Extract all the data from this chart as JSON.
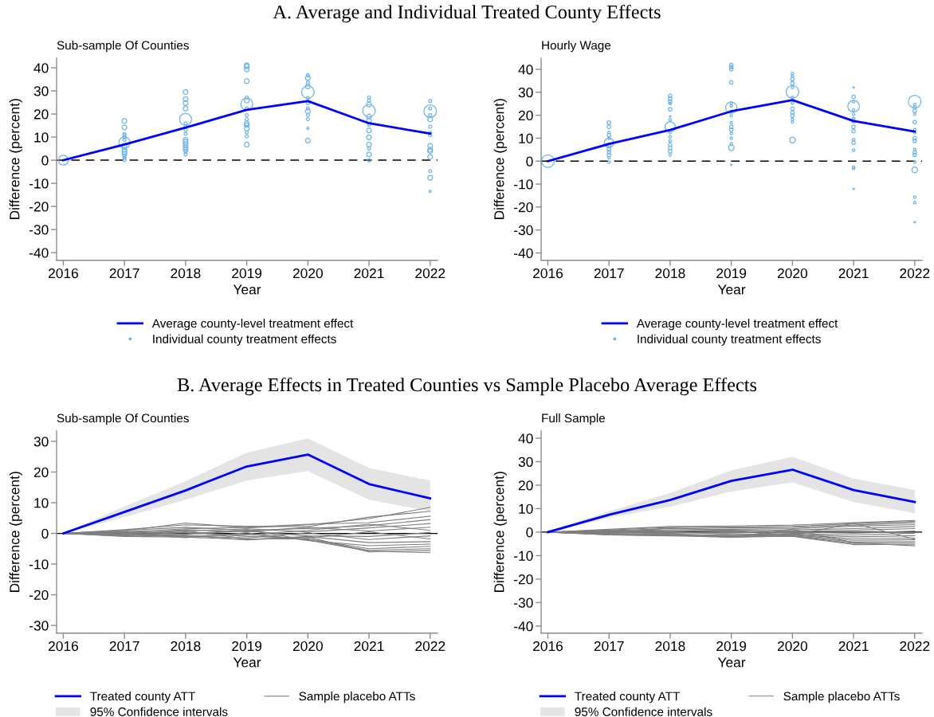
{
  "chart_data": [
    {
      "type": "line",
      "title": "A. Average and Individual Treated County Effects",
      "subtitle": "Sub-sample Of Counties",
      "xlabel": "Year",
      "ylabel": "Difference (percent)",
      "x": [
        2016,
        2017,
        2018,
        2019,
        2020,
        2021,
        2022
      ],
      "xlim": [
        2015.89,
        2022.12
      ],
      "xticks": [
        2016,
        2017,
        2018,
        2019,
        2020,
        2021,
        2022
      ],
      "ylim": [
        -43.3,
        44.2
      ],
      "yticks": [
        -40,
        -30,
        -20,
        -10,
        0,
        10,
        20,
        30,
        40
      ],
      "ref_lines": [
        {
          "axis": "y",
          "value": 0,
          "color": "#000000",
          "line_style": "dashed"
        }
      ],
      "grid": false,
      "legend": "bottom",
      "series": [
        {
          "name": "Average county-level treatment effect",
          "color": "#0000ff",
          "values": [
            0,
            6.8,
            14.1,
            21.8,
            25.6,
            16.0,
            11.5
          ]
        },
        {
          "type": "bubble",
          "name": "Individual county treatment effects",
          "color": "#6cb4ea",
          "marker": "circle",
          "x": [
            2016,
            2017,
            2017,
            2017,
            2017,
            2017,
            2017,
            2017,
            2017,
            2017,
            2017,
            2017,
            2017,
            2017,
            2017,
            2018,
            2018,
            2018,
            2018,
            2018,
            2018,
            2018,
            2018,
            2018,
            2018,
            2018,
            2018,
            2018,
            2018,
            2018,
            2018,
            2019,
            2019,
            2019,
            2019,
            2019,
            2019,
            2019,
            2019,
            2019,
            2019,
            2019,
            2019,
            2019,
            2019,
            2019,
            2019,
            2020,
            2020,
            2020,
            2020,
            2020,
            2020,
            2020,
            2020,
            2020,
            2020,
            2020,
            2020,
            2020,
            2021,
            2021,
            2021,
            2021,
            2021,
            2021,
            2021,
            2021,
            2021,
            2021,
            2021,
            2021,
            2021,
            2022,
            2022,
            2022,
            2022,
            2022,
            2022,
            2022,
            2022,
            2022,
            2022,
            2022,
            2022,
            2022,
            2022,
            2022
          ],
          "values": [
            0,
            17.0,
            14.2,
            11.2,
            10.8,
            9.9,
            8.8,
            7.6,
            6.2,
            4.5,
            3.7,
            2.8,
            1.8,
            1.0,
            0.1,
            29.5,
            26.4,
            24.7,
            22.4,
            17.7,
            16.0,
            14.5,
            13.1,
            11.4,
            8.8,
            7.9,
            6.8,
            5.6,
            4.5,
            3.7,
            2.5,
            41.1,
            40.6,
            39.3,
            34.2,
            27.2,
            25.8,
            24.3,
            22.4,
            19.5,
            17.7,
            16.0,
            15.2,
            13.7,
            12.0,
            10.3,
            6.8,
            36.8,
            35.6,
            33.5,
            31.9,
            29.5,
            26.9,
            24.7,
            22.4,
            21.2,
            19.5,
            17.7,
            13.8,
            8.5,
            27.2,
            25.8,
            24.1,
            21.4,
            18.9,
            17.2,
            15.4,
            12.9,
            9.9,
            6.8,
            5.1,
            2.5,
            -0.1,
            25.6,
            22.4,
            21.2,
            19.5,
            17.7,
            14.5,
            11.8,
            10.8,
            6.2,
            4.5,
            3.9,
            1.4,
            -4.7,
            -7.6,
            -13.4
          ],
          "sizes": [
            0.6,
            0.14,
            0.14,
            0.06,
            0.06,
            0.06,
            0.06,
            0.8,
            0.14,
            0.14,
            0.14,
            0.14,
            0.06,
            0.06,
            0.06,
            0.14,
            0.14,
            0.14,
            0.14,
            0.9,
            0.06,
            0.06,
            0.06,
            0.06,
            0.14,
            0.14,
            0.14,
            0.14,
            0.14,
            0.06,
            0.06,
            0.14,
            0.14,
            0.14,
            0.14,
            0.06,
            0.14,
            0.9,
            0.06,
            0.06,
            0.06,
            0.14,
            0.14,
            0.14,
            0.06,
            0.06,
            0.14,
            0.06,
            0.14,
            0.06,
            0.14,
            1,
            0.06,
            0.06,
            0.06,
            0.14,
            0.06,
            0.06,
            0.03,
            0.14,
            0.06,
            0.06,
            0.14,
            1,
            0.14,
            0.14,
            0.06,
            0.14,
            0.14,
            0.14,
            0.06,
            0.14,
            0.06,
            0.06,
            0.06,
            1,
            0.06,
            0.14,
            0.06,
            0.06,
            0.06,
            0.14,
            0.14,
            0.14,
            0.14,
            0.06,
            0.14,
            0.03
          ]
        }
      ]
    },
    {
      "type": "line",
      "subtitle": "Hourly Wage",
      "xlabel": "Year",
      "ylabel": "Difference (percent)",
      "x": [
        2016,
        2017,
        2018,
        2019,
        2020,
        2021,
        2022
      ],
      "xlim": [
        2015.89,
        2022.12
      ],
      "xticks": [
        2016,
        2017,
        2018,
        2019,
        2020,
        2021,
        2022
      ],
      "ylim": [
        -43.2,
        44.9
      ],
      "yticks": [
        -40,
        -30,
        -20,
        -10,
        0,
        10,
        20,
        30,
        40
      ],
      "ref_lines": [
        {
          "axis": "y",
          "value": 0,
          "color": "#000000",
          "line_style": "dashed"
        }
      ],
      "grid": false,
      "legend": "bottom",
      "series": [
        {
          "name": "Average county-level treatment effect",
          "color": "#0000ff",
          "values": [
            0,
            7.5,
            13.6,
            21.7,
            26.6,
            17.5,
            12.9
          ]
        },
        {
          "type": "bubble",
          "name": "Individual county treatment effects",
          "color": "#6cb4ea",
          "marker": "circle",
          "x": [
            2016,
            2017,
            2017,
            2017,
            2017,
            2017,
            2017,
            2017,
            2017,
            2017,
            2017,
            2017,
            2017,
            2018,
            2018,
            2018,
            2018,
            2018,
            2018,
            2018,
            2018,
            2018,
            2018,
            2018,
            2018,
            2018,
            2018,
            2018,
            2019,
            2019,
            2019,
            2019,
            2019,
            2019,
            2019,
            2019,
            2019,
            2019,
            2019,
            2019,
            2019,
            2019,
            2019,
            2019,
            2019,
            2020,
            2020,
            2020,
            2020,
            2020,
            2020,
            2020,
            2020,
            2020,
            2020,
            2020,
            2020,
            2020,
            2020,
            2021,
            2021,
            2021,
            2021,
            2021,
            2021,
            2021,
            2021,
            2021,
            2021,
            2021,
            2021,
            2021,
            2021,
            2021,
            2021,
            2022,
            2022,
            2022,
            2022,
            2022,
            2022,
            2022,
            2022,
            2022,
            2022,
            2022,
            2022,
            2022,
            2022,
            2022,
            2022,
            2022,
            2022
          ],
          "values": [
            0,
            16.8,
            14.9,
            12.5,
            11.3,
            10.0,
            8.0,
            7.0,
            5.1,
            3.9,
            2.7,
            1.5,
            -0.4,
            28.4,
            27.2,
            25.9,
            25.1,
            22.6,
            19.5,
            18.0,
            14.9,
            12.5,
            10.6,
            8.8,
            7.2,
            5.8,
            4.3,
            2.7,
            41.9,
            41.0,
            40.0,
            34.3,
            25.3,
            24.1,
            23.3,
            21.7,
            19.8,
            16.8,
            14.9,
            13.7,
            12.1,
            10.0,
            7.6,
            5.8,
            -1.6,
            38.2,
            37.0,
            35.7,
            33.9,
            32.1,
            30.2,
            27.8,
            25.3,
            22.9,
            21.1,
            19.8,
            18.2,
            17.1,
            9.2,
            32.1,
            28.0,
            25.9,
            23.9,
            22.3,
            20.4,
            18.6,
            17.4,
            14.9,
            13.1,
            9.4,
            8.0,
            4.8,
            -2.6,
            -3.2,
            -12.1,
            25.9,
            24.7,
            23.5,
            21.9,
            20.4,
            17.0,
            13.7,
            12.5,
            10.0,
            8.8,
            5.1,
            3.9,
            2.7,
            -0.4,
            -3.8,
            -15.7,
            -18.1,
            -26.6
          ],
          "sizes": [
            1,
            0.08,
            0.08,
            0.04,
            0.08,
            0.04,
            0.55,
            0.08,
            0.08,
            0.08,
            0.08,
            0.04,
            0.04,
            0.08,
            0.08,
            0.08,
            0.04,
            0.08,
            0.015,
            0.04,
            0.65,
            0.04,
            0.04,
            0.04,
            0.08,
            0.08,
            0.08,
            0.04,
            0.08,
            0.08,
            0.08,
            0.08,
            0.04,
            0.04,
            0.8,
            0.04,
            0.04,
            0.04,
            0.08,
            0.08,
            0.04,
            0.04,
            0.04,
            0.2,
            0.015,
            0.04,
            0.04,
            0.08,
            0.08,
            0.04,
            1,
            0.04,
            0.04,
            0.08,
            0.08,
            0.08,
            0.04,
            0.04,
            0.2,
            0.015,
            0.08,
            0.04,
            0.85,
            0.04,
            0.04,
            0.04,
            0.08,
            0.08,
            0.08,
            0.04,
            0.08,
            0.04,
            0.04,
            0.04,
            0.015,
            1,
            0.04,
            0.04,
            0.08,
            0.04,
            0.08,
            0.04,
            0.04,
            0.08,
            0.08,
            0.04,
            0.08,
            0.08,
            0.04,
            0.2,
            0.04,
            0.04,
            0.015
          ]
        }
      ]
    },
    {
      "type": "line",
      "title": "B. Average Effects in Treated Counties vs Sample Placebo Average Effects",
      "subtitle": "Sub-sample Of Counties",
      "xlabel": "Year",
      "ylabel": "Difference (percent)",
      "x": [
        2016,
        2017,
        2018,
        2019,
        2020,
        2021,
        2022
      ],
      "xlim": [
        2015.89,
        2022.12
      ],
      "xticks": [
        2016,
        2017,
        2018,
        2019,
        2020,
        2021,
        2022
      ],
      "ylim": [
        -32.5,
        33.4
      ],
      "yticks": [
        -30,
        -20,
        -10,
        0,
        10,
        20,
        30
      ],
      "ref_lines": [
        {
          "axis": "y",
          "value": 0,
          "color": "#000000",
          "line_style": "solid"
        }
      ],
      "grid": false,
      "legend": "bottom",
      "series": [
        {
          "name": "Treated county ATT",
          "color": "#0000ff",
          "values": [
            0,
            7.0,
            14.0,
            21.8,
            25.7,
            16.1,
            11.4
          ]
        },
        {
          "name": "Sample placebo ATTs",
          "color": "#7f7f7f",
          "values": [
            0,
            0.8,
            3.4,
            1.8,
            2.8,
            4.8,
            8.5
          ]
        },
        {
          "color": "#7f7f7f",
          "values": [
            0,
            1.2,
            2.8,
            2.3,
            2.2,
            5.3,
            7.2
          ]
        },
        {
          "color": "#7f7f7f",
          "values": [
            0,
            0.5,
            1.5,
            2.0,
            3.0,
            3.5,
            5.6
          ]
        },
        {
          "color": "#7f7f7f",
          "values": [
            0,
            1.0,
            2.0,
            1.0,
            1.6,
            2.5,
            4.5
          ]
        },
        {
          "color": "#7f7f7f",
          "values": [
            0,
            0.3,
            0.8,
            1.5,
            0.5,
            1.8,
            3.2
          ]
        },
        {
          "color": "#7f7f7f",
          "values": [
            0,
            -0.2,
            1.2,
            0.5,
            2.0,
            0.8,
            2.0
          ]
        },
        {
          "color": "#7f7f7f",
          "values": [
            0,
            0.6,
            0.2,
            -0.5,
            1.0,
            3.0,
            1.0
          ]
        },
        {
          "color": "#7f7f7f",
          "values": [
            0,
            -0.5,
            -0.3,
            0.8,
            -0.8,
            -1.0,
            0.3
          ]
        },
        {
          "color": "#7f7f7f",
          "values": [
            0,
            0.2,
            -0.8,
            -1.5,
            0.2,
            -2.0,
            -0.8
          ]
        },
        {
          "color": "#7f7f7f",
          "values": [
            0,
            -0.8,
            0.5,
            -1.0,
            -1.5,
            0.5,
            -1.8
          ]
        },
        {
          "color": "#7f7f7f",
          "values": [
            0,
            -1.0,
            -1.2,
            -2.0,
            -1.0,
            -3.0,
            -2.7
          ]
        },
        {
          "color": "#7f7f7f",
          "values": [
            0,
            0.1,
            -1.4,
            0.2,
            -2.3,
            -4.0,
            -3.5
          ]
        },
        {
          "color": "#7f7f7f",
          "values": [
            0,
            -0.6,
            0.9,
            -1.8,
            -1.8,
            -5.0,
            -4.2
          ]
        },
        {
          "color": "#7f7f7f",
          "values": [
            0,
            -0.3,
            -1.0,
            -0.3,
            -2.0,
            -5.5,
            -5.0
          ]
        },
        {
          "color": "#7f7f7f",
          "values": [
            0,
            -0.9,
            -0.6,
            -2.1,
            -1.2,
            -6.0,
            -5.6
          ]
        },
        {
          "color": "#7f7f7f",
          "values": [
            0,
            0.4,
            -0.2,
            1.2,
            -2.2,
            -5.8,
            -6.3
          ]
        },
        {
          "type": "area",
          "name": "95% Confidence intervals",
          "color": "#e4e4e4",
          "values": [
            null,
            null,
            null,
            null,
            null,
            null,
            null
          ],
          "lower": [
            0,
            5.3,
            11.0,
            17.2,
            20.3,
            11.0,
            7.2
          ],
          "upper": [
            0,
            8.8,
            17.0,
            26.3,
            31.0,
            21.3,
            17.2
          ]
        }
      ]
    },
    {
      "type": "line",
      "subtitle": "Full Sample",
      "xlabel": "Year",
      "ylabel": "Difference (percent)",
      "x": [
        2016,
        2017,
        2018,
        2019,
        2020,
        2021,
        2022
      ],
      "xlim": [
        2015.89,
        2022.12
      ],
      "xticks": [
        2016,
        2017,
        2018,
        2019,
        2020,
        2021,
        2022
      ],
      "ylim": [
        -43.0,
        43.1
      ],
      "yticks": [
        -40,
        -30,
        -20,
        -10,
        0,
        10,
        20,
        30,
        40
      ],
      "ref_lines": [
        {
          "axis": "y",
          "value": 0,
          "color": "#000000",
          "line_style": "solid"
        }
      ],
      "grid": false,
      "legend": "bottom",
      "series": [
        {
          "name": "Treated county ATT",
          "color": "#0000ff",
          "values": [
            0,
            7.4,
            13.7,
            21.8,
            26.6,
            17.9,
            12.8
          ]
        },
        {
          "name": "Sample placebo ATTs",
          "color": "#7f7f7f",
          "values": [
            0,
            1.2,
            2.4,
            2.6,
            3.0,
            4.0,
            5.0
          ]
        },
        {
          "color": "#7f7f7f",
          "values": [
            0,
            0.9,
            2.0,
            2.2,
            2.4,
            3.6,
            4.6
          ]
        },
        {
          "color": "#7f7f7f",
          "values": [
            0,
            0.6,
            1.5,
            1.8,
            2.0,
            3.0,
            4.0
          ]
        },
        {
          "color": "#7f7f7f",
          "values": [
            0,
            0.4,
            1.0,
            1.2,
            1.5,
            2.5,
            3.2
          ]
        },
        {
          "color": "#7f7f7f",
          "values": [
            0,
            0.2,
            0.6,
            0.5,
            1.0,
            1.5,
            2.4
          ]
        },
        {
          "color": "#7f7f7f",
          "values": [
            0,
            -0.1,
            0.3,
            1.0,
            0.5,
            0.8,
            1.5
          ]
        },
        {
          "color": "#7f7f7f",
          "values": [
            0,
            0.3,
            -0.2,
            -0.4,
            0.2,
            -0.5,
            0.5
          ]
        },
        {
          "color": "#7f7f7f",
          "values": [
            0,
            -0.3,
            -0.5,
            0.2,
            -0.5,
            -1.2,
            -0.5
          ]
        },
        {
          "color": "#7f7f7f",
          "values": [
            0,
            -0.5,
            0.2,
            -1.0,
            -0.8,
            -2.0,
            -1.5
          ]
        },
        {
          "color": "#7f7f7f",
          "values": [
            0,
            -0.7,
            -0.8,
            -1.4,
            -1.0,
            -2.8,
            -2.5
          ]
        },
        {
          "color": "#7f7f7f",
          "values": [
            0,
            -0.9,
            -1.0,
            -1.8,
            -1.2,
            -3.5,
            -3.2
          ]
        },
        {
          "color": "#7f7f7f",
          "values": [
            0,
            -1.0,
            -1.3,
            -2.0,
            -1.5,
            -4.2,
            -4.0
          ]
        },
        {
          "color": "#7f7f7f",
          "values": [
            0,
            -1.1,
            -1.5,
            -2.2,
            -1.7,
            -4.8,
            -4.6
          ]
        },
        {
          "color": "#7f7f7f",
          "values": [
            0,
            -1.2,
            -1.6,
            -1.5,
            -1.8,
            -5.3,
            -5.2
          ]
        },
        {
          "color": "#7f7f7f",
          "values": [
            0,
            0.8,
            -1.2,
            -2.1,
            1.2,
            -4.5,
            -5.8
          ]
        },
        {
          "color": "#7f7f7f",
          "values": [
            0,
            -0.4,
            1.8,
            0.8,
            -1.4,
            3.8,
            -3.0
          ]
        },
        {
          "type": "area",
          "name": "95% Confidence intervals",
          "color": "#e4e4e4",
          "values": [
            null,
            null,
            null,
            null,
            null,
            null,
            null
          ],
          "lower": [
            0,
            6.2,
            10.8,
            17.3,
            21.2,
            12.8,
            8.0
          ],
          "upper": [
            0,
            8.9,
            16.7,
            26.3,
            32.1,
            22.8,
            18.0
          ]
        }
      ]
    }
  ]
}
